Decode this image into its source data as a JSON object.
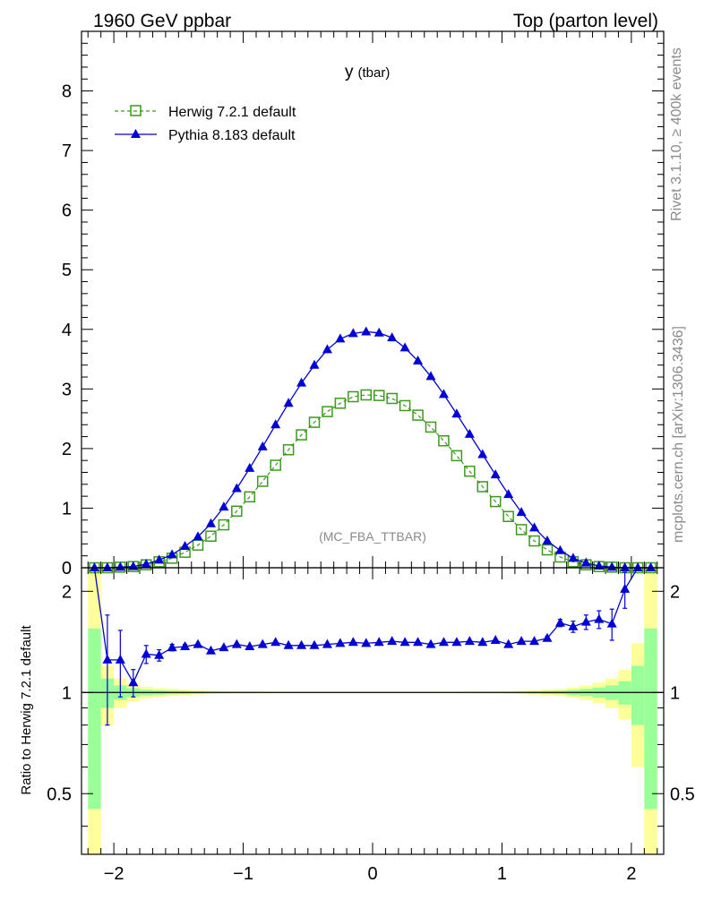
{
  "header": {
    "left": "1960 GeV ppbar",
    "right": "Top (parton level)"
  },
  "side": {
    "rivet": "Rivet 3.1.10, ≥ 400k events",
    "mcplots": "mcplots.cern.ch [arXiv:1306.3436]"
  },
  "colors": {
    "herwig": "#3c9a1e",
    "pythia": "#0000d6",
    "band_outer": "#ffff99",
    "band_inner": "#99ff99"
  },
  "chart_data": [
    {
      "type": "line",
      "title_main": "y",
      "title_sub": "(tbar)",
      "analysis_label": "(MC_FBA_TTBAR)",
      "xlim": [
        -2.25,
        2.25
      ],
      "ylim": [
        0,
        9
      ],
      "yticks": [
        "0",
        "1",
        "2",
        "3",
        "4",
        "5",
        "6",
        "7",
        "8"
      ],
      "legend_position": "top-left",
      "x": [
        -2.15,
        -2.05,
        -1.95,
        -1.85,
        -1.75,
        -1.65,
        -1.55,
        -1.45,
        -1.35,
        -1.25,
        -1.15,
        -1.05,
        -0.95,
        -0.85,
        -0.75,
        -0.65,
        -0.55,
        -0.45,
        -0.35,
        -0.25,
        -0.15,
        -0.05,
        0.05,
        0.15,
        0.25,
        0.35,
        0.45,
        0.55,
        0.65,
        0.75,
        0.85,
        0.95,
        1.05,
        1.15,
        1.25,
        1.35,
        1.45,
        1.55,
        1.65,
        1.75,
        1.85,
        1.95,
        2.05,
        2.15
      ],
      "series": [
        {
          "name": "Herwig 7.2.1 default",
          "marker": "open-square",
          "line": "dashed",
          "values": [
            0.0,
            0.0,
            0.01,
            0.02,
            0.05,
            0.1,
            0.16,
            0.26,
            0.38,
            0.53,
            0.72,
            0.95,
            1.19,
            1.45,
            1.72,
            1.98,
            2.23,
            2.44,
            2.62,
            2.76,
            2.87,
            2.9,
            2.89,
            2.84,
            2.72,
            2.56,
            2.36,
            2.13,
            1.88,
            1.62,
            1.36,
            1.11,
            0.86,
            0.64,
            0.45,
            0.3,
            0.18,
            0.1,
            0.05,
            0.02,
            0.01,
            0.0,
            0.0,
            0.0
          ]
        },
        {
          "name": "Pythia 8.183 default",
          "marker": "filled-triangle",
          "line": "solid",
          "values": [
            0.0,
            0.0,
            0.01,
            0.02,
            0.06,
            0.13,
            0.22,
            0.36,
            0.52,
            0.74,
            1.02,
            1.33,
            1.67,
            2.03,
            2.4,
            2.76,
            3.1,
            3.4,
            3.66,
            3.84,
            3.93,
            3.96,
            3.94,
            3.86,
            3.69,
            3.47,
            3.21,
            2.91,
            2.58,
            2.24,
            1.9,
            1.56,
            1.23,
            0.93,
            0.67,
            0.45,
            0.29,
            0.16,
            0.08,
            0.03,
            0.01,
            0.0,
            0.0,
            0.0
          ]
        }
      ]
    },
    {
      "type": "line",
      "ylabel": "Ratio to Herwig 7.2.1 default",
      "xlim": [
        -2.25,
        2.25
      ],
      "ylim": [
        0.33,
        2.35
      ],
      "xticks": [
        "−2",
        "−1",
        "0",
        "1",
        "2"
      ],
      "yticks_left": [
        "0.5",
        "1",
        "2"
      ],
      "yticks_right": [
        "0.5",
        "1",
        "2"
      ],
      "reference_line": 1,
      "bands": {
        "outer_half_width": [
          2.0,
          0.2,
          0.1,
          0.06,
          0.04,
          0.03,
          0.025,
          0.02,
          0.015,
          0.012,
          0.01,
          0.008,
          0.007,
          0.006,
          0.005,
          0.005,
          0.004,
          0.004,
          0.004,
          0.004,
          0.004,
          0.004,
          0.004,
          0.004,
          0.004,
          0.004,
          0.004,
          0.005,
          0.005,
          0.006,
          0.007,
          0.008,
          0.01,
          0.012,
          0.015,
          0.02,
          0.025,
          0.035,
          0.05,
          0.07,
          0.1,
          0.17,
          0.4,
          2.0
        ],
        "inner_half_width": [
          0.55,
          0.1,
          0.05,
          0.03,
          0.02,
          0.015,
          0.012,
          0.01,
          0.008,
          0.006,
          0.005,
          0.004,
          0.0035,
          0.003,
          0.0025,
          0.0025,
          0.002,
          0.002,
          0.002,
          0.002,
          0.002,
          0.002,
          0.002,
          0.002,
          0.002,
          0.002,
          0.002,
          0.0025,
          0.0025,
          0.003,
          0.0035,
          0.004,
          0.005,
          0.006,
          0.008,
          0.01,
          0.012,
          0.018,
          0.025,
          0.035,
          0.05,
          0.08,
          0.2,
          0.55
        ]
      },
      "series": [
        {
          "name": "Pythia 8.183 default",
          "values": [
            2.4,
            1.25,
            1.25,
            1.07,
            1.3,
            1.29,
            1.36,
            1.37,
            1.39,
            1.33,
            1.36,
            1.39,
            1.37,
            1.39,
            1.41,
            1.38,
            1.38,
            1.38,
            1.39,
            1.4,
            1.41,
            1.4,
            1.41,
            1.42,
            1.41,
            1.41,
            1.39,
            1.41,
            1.41,
            1.42,
            1.41,
            1.43,
            1.39,
            1.42,
            1.42,
            1.45,
            1.61,
            1.57,
            1.62,
            1.65,
            1.6,
            2.03,
            2.6,
            2.6
          ],
          "errors": [
            0.4,
            0.45,
            0.28,
            0.1,
            0.08,
            0.05,
            0.03,
            0.02,
            0.015,
            0.01,
            0.01,
            0.01,
            0.01,
            0.01,
            0.01,
            0.01,
            0.01,
            0.01,
            0.01,
            0.01,
            0.01,
            0.01,
            0.01,
            0.01,
            0.01,
            0.01,
            0.01,
            0.01,
            0.01,
            0.01,
            0.01,
            0.01,
            0.01,
            0.01,
            0.015,
            0.02,
            0.04,
            0.06,
            0.08,
            0.1,
            0.17,
            0.25,
            0.4,
            0.4
          ]
        }
      ]
    }
  ]
}
